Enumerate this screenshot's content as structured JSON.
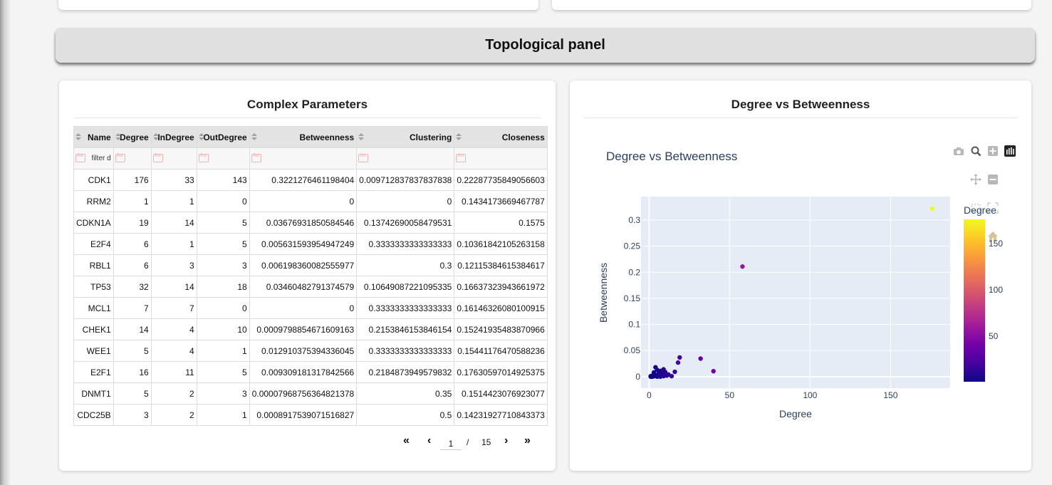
{
  "panel_title": "Topological panel",
  "table_card": {
    "title": "Complex Parameters",
    "columns": [
      "Name",
      "Degree",
      "InDegree",
      "OutDegree",
      "Betweenness",
      "Clustering",
      "Closeness"
    ],
    "filter_placeholder": "filter d",
    "rows": [
      [
        "CDK1",
        "176",
        "33",
        "143",
        "0.3221276461198404",
        "0.009712837837837838",
        "0.22287735849056603"
      ],
      [
        "RRM2",
        "1",
        "1",
        "0",
        "0",
        "0",
        "0.1434173669467787"
      ],
      [
        "CDKN1A",
        "19",
        "14",
        "5",
        "0.03676931850584546",
        "0.13742690058479531",
        "0.1575"
      ],
      [
        "E2F4",
        "6",
        "1",
        "5",
        "0.005631593954947249",
        "0.3333333333333333",
        "0.10361842105263158"
      ],
      [
        "RBL1",
        "6",
        "3",
        "3",
        "0.006198360082555977",
        "0.3",
        "0.12115384615384617"
      ],
      [
        "TP53",
        "32",
        "14",
        "18",
        "0.03460482791374579",
        "0.10649087221095335",
        "0.16637323943661972"
      ],
      [
        "MCL1",
        "7",
        "7",
        "0",
        "0",
        "0.3333333333333333",
        "0.16146326080100915"
      ],
      [
        "CHEK1",
        "14",
        "4",
        "10",
        "0.0009798854671609163",
        "0.2153846153846154",
        "0.15241935483870966"
      ],
      [
        "WEE1",
        "5",
        "4",
        "1",
        "0.012910375394336045",
        "0.3333333333333333",
        "0.15441176470588236"
      ],
      [
        "E2F1",
        "16",
        "11",
        "5",
        "0.009309181317842566",
        "0.2184873949579832",
        "0.17630597014925375"
      ],
      [
        "DNMT1",
        "5",
        "2",
        "3",
        "0.00007968756364821378",
        "0.35",
        "0.1514423076923077"
      ],
      [
        "CDC25B",
        "3",
        "2",
        "1",
        "0.0008917539071516827",
        "0.5",
        "0.14231927710843373"
      ]
    ],
    "pager": {
      "first": "«",
      "prev": "‹",
      "current": "1",
      "separator": "/",
      "total": "15",
      "next": "›",
      "last": "»"
    }
  },
  "plot_card": {
    "title": "Degree vs Betweenness",
    "modebar": [
      "camera-icon",
      "zoom-icon",
      "zoom-in-icon",
      "autoscale-icon",
      "pan-icon",
      "zoom-out-icon",
      "box-select-icon",
      "lasso-icon",
      "hover-icon",
      "home-icon"
    ]
  },
  "chart_data": {
    "type": "scatter",
    "title": "Degree vs Betweenness",
    "xlabel": "Degree",
    "ylabel": "Betweenness",
    "xlim": [
      -5,
      187
    ],
    "ylim": [
      -0.022,
      0.345
    ],
    "xticks": [
      0,
      50,
      100,
      150
    ],
    "yticks": [
      0,
      0.05,
      0.1,
      0.15,
      0.2,
      0.25,
      0.3
    ],
    "ytick_labels": [
      "0",
      "0.05",
      "0.1",
      "0.15",
      "0.2",
      "0.25",
      "0.3"
    ],
    "grid": true,
    "colorbar": {
      "title": "Degree",
      "ticks": [
        50,
        100,
        150
      ],
      "range": [
        1,
        176
      ],
      "colors": [
        "#0d0887",
        "#46039f",
        "#7201a8",
        "#9c179e",
        "#bd3786",
        "#d8576b",
        "#ed7953",
        "#fb9f3a",
        "#fdca26",
        "#f0f921"
      ]
    },
    "points": [
      {
        "x": 176,
        "y": 0.3221
      },
      {
        "x": 58,
        "y": 0.211
      },
      {
        "x": 19,
        "y": 0.0368
      },
      {
        "x": 32,
        "y": 0.0346
      },
      {
        "x": 40,
        "y": 0.0105
      },
      {
        "x": 18,
        "y": 0.027
      },
      {
        "x": 16,
        "y": 0.0093
      },
      {
        "x": 14,
        "y": 0.00098
      },
      {
        "x": 12,
        "y": 0.004
      },
      {
        "x": 9,
        "y": 0.014
      },
      {
        "x": 8,
        "y": 0.006
      },
      {
        "x": 7,
        "y": 0
      },
      {
        "x": 6,
        "y": 0.0056
      },
      {
        "x": 6,
        "y": 0.0062
      },
      {
        "x": 5,
        "y": 0.0129
      },
      {
        "x": 5,
        "y": 8e-05
      },
      {
        "x": 4,
        "y": 0.018
      },
      {
        "x": 4,
        "y": 0.003
      },
      {
        "x": 3,
        "y": 0.0009
      },
      {
        "x": 3,
        "y": 0.008
      },
      {
        "x": 2,
        "y": 0.002
      },
      {
        "x": 2,
        "y": 0.0
      },
      {
        "x": 1,
        "y": 0
      },
      {
        "x": 1,
        "y": 0.001
      },
      {
        "x": 10,
        "y": 0.009
      },
      {
        "x": 11,
        "y": 0.002
      },
      {
        "x": 9,
        "y": 0.001
      },
      {
        "x": 7,
        "y": 0.011
      }
    ]
  }
}
